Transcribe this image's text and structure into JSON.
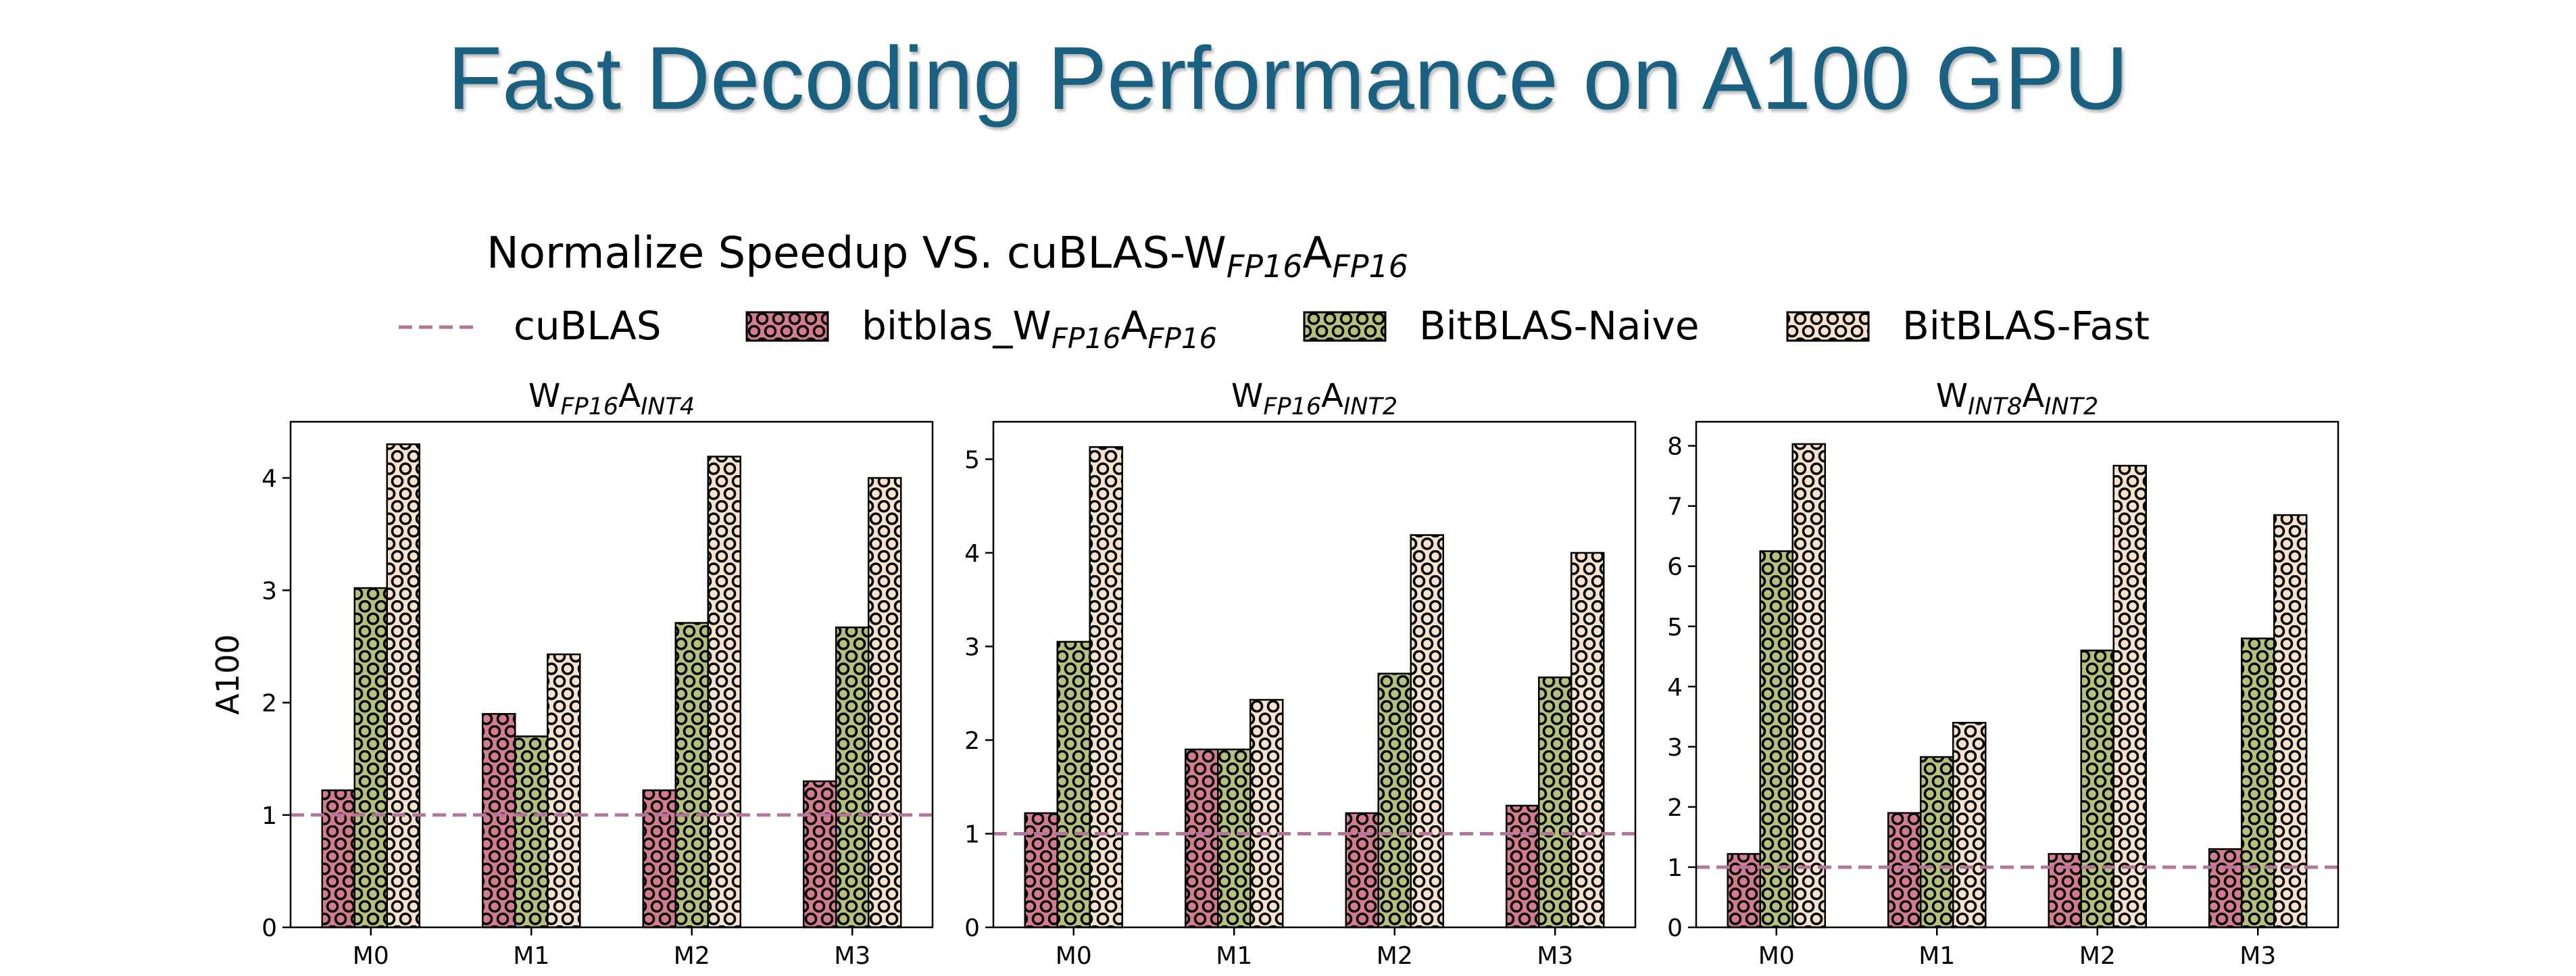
{
  "slide_title": "Fast Decoding Performance on A100 GPU",
  "colors": {
    "title": "#1a6080",
    "cublas_line": "#b3769a",
    "bitblas_fp16": "#d47b8e",
    "bitblas_naive": "#b5c17a",
    "bitblas_fast": "#f7e3cc"
  },
  "figure": {
    "suptitle": {
      "main": "Normalize Speedup VS. cuBLAS-W",
      "sub1": "FP16",
      "mid": "A",
      "sub2": "FP16"
    },
    "legend_position": "top-center",
    "legend": [
      {
        "key": "cublas",
        "style": "dashed-line",
        "parts": [
          {
            "t": "cuBLAS"
          }
        ]
      },
      {
        "key": "bitblas_fp16",
        "style": "hatched-box",
        "parts": [
          {
            "t": "bitblas_W"
          },
          {
            "t": "FP16",
            "sub": true
          },
          {
            "t": "A"
          },
          {
            "t": "FP16",
            "sub": true
          }
        ]
      },
      {
        "key": "bitblas_naive",
        "style": "hatched-box",
        "parts": [
          {
            "t": "BitBLAS-Naive"
          }
        ]
      },
      {
        "key": "bitblas_fast",
        "style": "hatched-box",
        "parts": [
          {
            "t": "BitBLAS-Fast"
          }
        ]
      }
    ],
    "ylabel": "A100"
  },
  "chart_data": [
    {
      "type": "bar",
      "title_parts": [
        {
          "t": "W"
        },
        {
          "t": "FP16",
          "sub": true
        },
        {
          "t": "A"
        },
        {
          "t": "INT4",
          "sub": true
        }
      ],
      "categories": [
        "M0",
        "M1",
        "M2",
        "M3"
      ],
      "ylim": [
        0,
        4.5
      ],
      "yticks": [
        0,
        1,
        2,
        3,
        4
      ],
      "baseline": 1.0,
      "series": [
        {
          "key": "bitblas_fp16",
          "name": "bitblas_WFP16AFP16",
          "values": [
            1.22,
            1.9,
            1.22,
            1.3
          ]
        },
        {
          "key": "bitblas_naive",
          "name": "BitBLAS-Naive",
          "values": [
            3.02,
            1.7,
            2.71,
            2.67
          ]
        },
        {
          "key": "bitblas_fast",
          "name": "BitBLAS-Fast",
          "values": [
            4.3,
            2.43,
            4.19,
            4.0
          ]
        }
      ]
    },
    {
      "type": "bar",
      "title_parts": [
        {
          "t": "W"
        },
        {
          "t": "FP16",
          "sub": true
        },
        {
          "t": "A"
        },
        {
          "t": "INT2",
          "sub": true
        }
      ],
      "categories": [
        "M0",
        "M1",
        "M2",
        "M3"
      ],
      "ylim": [
        0,
        5.4
      ],
      "yticks": [
        0,
        1,
        2,
        3,
        4,
        5
      ],
      "baseline": 1.0,
      "series": [
        {
          "key": "bitblas_fp16",
          "name": "bitblas_WFP16AFP16",
          "values": [
            1.22,
            1.9,
            1.22,
            1.3
          ]
        },
        {
          "key": "bitblas_naive",
          "name": "BitBLAS-Naive",
          "values": [
            3.05,
            1.9,
            2.71,
            2.67
          ]
        },
        {
          "key": "bitblas_fast",
          "name": "BitBLAS-Fast",
          "values": [
            5.13,
            2.43,
            4.19,
            4.0
          ]
        }
      ]
    },
    {
      "type": "bar",
      "title_parts": [
        {
          "t": "W"
        },
        {
          "t": "INT8",
          "sub": true
        },
        {
          "t": "A"
        },
        {
          "t": "INT2",
          "sub": true
        }
      ],
      "categories": [
        "M0",
        "M1",
        "M2",
        "M3"
      ],
      "ylim": [
        0,
        8.4
      ],
      "yticks": [
        0,
        1,
        2,
        3,
        4,
        5,
        6,
        7,
        8
      ],
      "baseline": 1.0,
      "series": [
        {
          "key": "bitblas_fp16",
          "name": "bitblas_WFP16AFP16",
          "values": [
            1.22,
            1.9,
            1.22,
            1.3
          ]
        },
        {
          "key": "bitblas_naive",
          "name": "BitBLAS-Naive",
          "values": [
            6.25,
            2.83,
            4.6,
            4.8
          ]
        },
        {
          "key": "bitblas_fast",
          "name": "BitBLAS-Fast",
          "values": [
            8.03,
            3.4,
            7.67,
            6.85
          ]
        }
      ]
    }
  ]
}
